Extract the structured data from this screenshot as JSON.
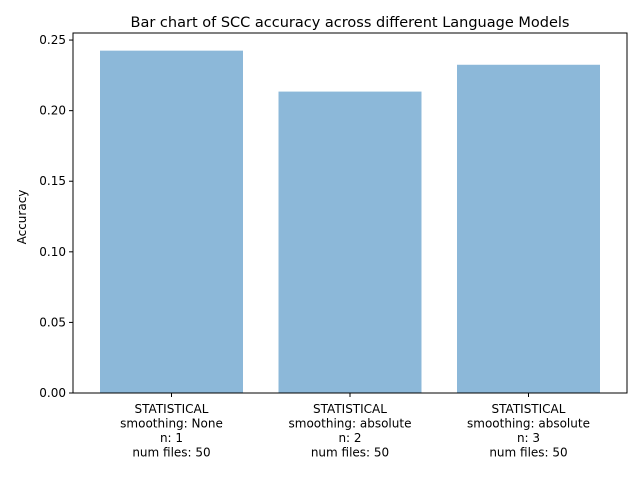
{
  "chart_data": {
    "type": "bar",
    "title": "Bar chart of SCC accuracy across different Language Models",
    "xlabel": "",
    "ylabel": "Accuracy",
    "ylim": [
      0,
      0.255
    ],
    "yticks": [
      "0.00",
      "0.05",
      "0.10",
      "0.15",
      "0.20",
      "0.25"
    ],
    "ytick_values": [
      0,
      0.05,
      0.1,
      0.15,
      0.2,
      0.25
    ],
    "categories": [
      [
        "STATISTICAL",
        "smoothing: None",
        "n: 1",
        "num files: 50"
      ],
      [
        "STATISTICAL",
        "smoothing: absolute",
        "n: 2",
        "num files: 50"
      ],
      [
        "STATISTICAL",
        "smoothing: absolute",
        "n: 3",
        "num files: 50"
      ]
    ],
    "values": [
      0.2425,
      0.2135,
      0.2325
    ],
    "bar_color": "#8cb8d9",
    "grid": false
  }
}
